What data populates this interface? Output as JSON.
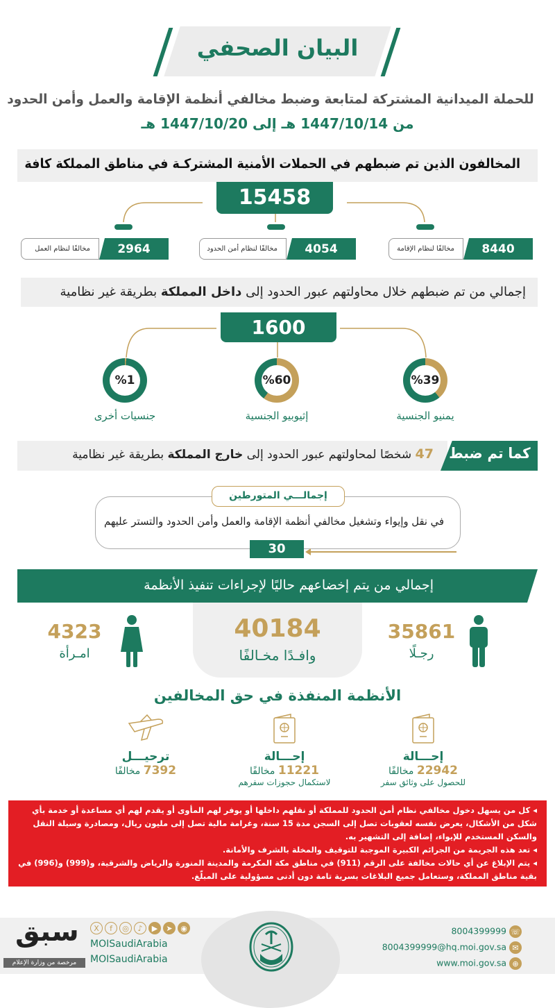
{
  "header": {
    "title": "البيان الصحفي",
    "subtitle": "للحملة الميدانية المشتركة لمتابعة وضبط مخالفي أنظمة الإقامة والعمل وأمن الحدود",
    "date_range": "من 1447/10/14 هـ إلى 1447/10/20 هـ"
  },
  "arrested": {
    "heading": "المخالفون الذين تم ضبطهم في الحملات الأمنية المشتركـة في مناطق المملكة كافة",
    "total": "15458",
    "items": [
      {
        "value": "8440",
        "label": "مخالفًا لنظام الإقامة"
      },
      {
        "value": "4054",
        "label": "مخالفًا لنظام أمن الحدود"
      },
      {
        "value": "2964",
        "label": "مخالفًا لنظام العمل"
      }
    ]
  },
  "inbound": {
    "heading_pre": "إجمالي من تم ضبطهم خلال محاولتهم عبور الحدود إلى ",
    "heading_bold": "داخل المملكة",
    "heading_post": " بطريقة غير نظامية",
    "total": "1600",
    "nationalities": [
      {
        "percent": 39,
        "text": "%39",
        "label": "يمنيو الجنسية"
      },
      {
        "percent": 60,
        "text": "%60",
        "label": "إثيوبيو الجنسية"
      },
      {
        "percent": 1,
        "text": "%1",
        "label": "جنسيات أخرى"
      }
    ]
  },
  "outbound": {
    "badge": "كما تم ضبط",
    "count": "47",
    "text_pre": " شخصًا لمحاولتهم عبور الحدود إلى ",
    "text_bold": "خارج المملكة",
    "text_post": " بطريقة غير نظامية"
  },
  "involved": {
    "title": "إجمالـــي المتورطين",
    "description": "في نقل وإيواء وتشغيل مخالفي أنظمة الإقامة والعمل وأمن الحدود والتستر عليهم",
    "value": "30"
  },
  "enforcement": {
    "heading": "إجمالي من يتم إخضاعهم حاليًا لإجراءات تنفيذ الأنظمة",
    "total": "40184",
    "total_label": "وافـدًا مخـالفًا",
    "men": "35861",
    "men_label": "رجـلًا",
    "women": "4323",
    "women_label": "امـرأة"
  },
  "measures": {
    "heading": "الأنظمة المنفذة في حق المخالفين",
    "items": [
      {
        "icon": "passport-icon",
        "title": "إحـــالة",
        "value": "22942",
        "unit": "مخالفًا",
        "note": "للحصول على وثائق سفر"
      },
      {
        "icon": "passport-icon",
        "title": "إحـــالة",
        "value": "11221",
        "unit": "مخالفًا",
        "note": "لاستكمال حجوزات سفرهم"
      },
      {
        "icon": "airplane-icon",
        "title": "ترحيـــل",
        "value": "7392",
        "unit": "مخالفًا",
        "note": ""
      }
    ]
  },
  "warnings": [
    "كل من يسهل دخول مخالفي نظام أمن الحدود للمملكة أو نقلهم داخلها أو يوفر لهم المأوى أو يقدم لهم أي مساعدة أو خدمة بأي شكل من الأشكال، يعرض نفسه لعقوبات تصل إلى السجن مدة 15 سنة، وغرامة مالية تصل إلى مليون ريال، ومصادرة وسيلة النقل والسكن المستخدم للإيواء، إضافة إلى التشهير به.",
    "تعد هذه الجريمة من الجرائم الكبيرة الموجبة للتوقيف والمخلة بالشرف والأمانة.",
    "يتم الإبلاغ عن أي حالات مخالفة على الرقم (911) في مناطق مكة المكرمة والمدينة المنورة والرياض والشرقية، و(999) و(996) في بقية مناطق المملكة، وستعامل جميع البلاغات بسرية تامة دون أدنى مسؤولية على المبلّغ."
  ],
  "footer": {
    "phone": "8004399999",
    "email": "8004399999@hq.moi.gov.sa",
    "website": "www.moi.gov.sa",
    "social_handle": "MOISaudiArabia",
    "social_handle_2": "MOISaudiArabia",
    "watermark": "سبق",
    "watermark_caption": "مرخصة من وزارة الإعلام"
  },
  "colors": {
    "green": "#1d7a5f",
    "gold": "#c4a05a",
    "red": "#e31e24",
    "gray": "#efefef"
  }
}
